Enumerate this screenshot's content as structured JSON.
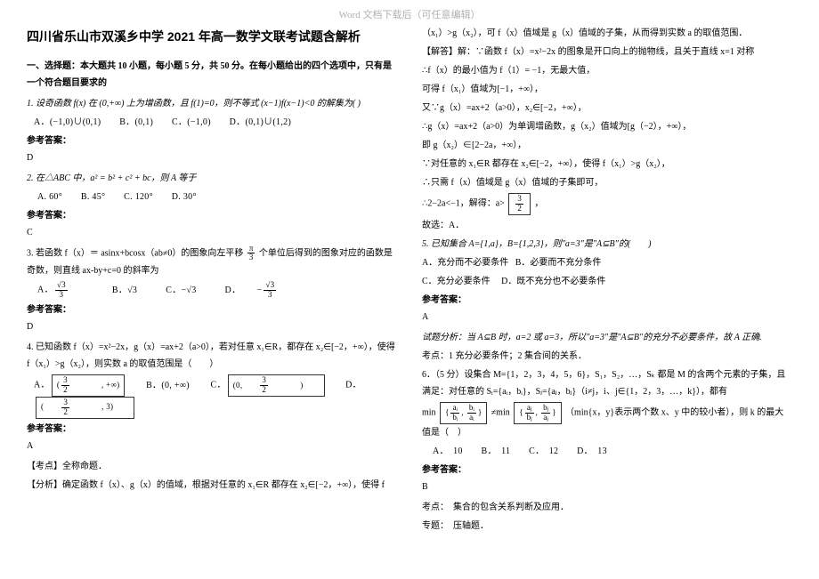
{
  "watermark": "Word 文档下载后（可任意编辑）",
  "title": "四川省乐山市双溪乡中学 2021 年高一数学文联考试题含解析",
  "section1_head": "一、选择题：本大题共 10 小题，每小题 5 分，共 50 分。在每小题给出的四个选项中，只有是一个符合题目要求的",
  "q1_text": "1. 设奇函数 f(x) 在 (0,+∞) 上为增函数，且 f(1)=0，则不等式 (x−1)f(x−1)<0 的解集为(    )",
  "q1_optA": "A．(−1,0)∪(0,1)",
  "q1_optB": "B．(0,1)",
  "q1_optC": "C．(−1,0)",
  "q1_optD": "D．(0,1)∪(1,2)",
  "ans_label": "参考答案：",
  "q1_ans": "D",
  "q2_text": "2. 在△ABC 中，a² = b² + c² + bc，则 A 等于",
  "q2_optA": "A. 60°",
  "q2_optB": "B. 45°",
  "q2_optC": "C. 120°",
  "q2_optD": "D. 30°",
  "q2_ans": "C",
  "q3_text_a": "3. 若函数 f（x）＝ asinx+bcosx（ab≠0）的图象向左平移",
  "q3_text_b": "个单位后得到的图象对应的函数是奇数，则直线 ax-by+c=0 的斜率为",
  "q3_frac_n": "π",
  "q3_frac_d": "3",
  "q3_optA_n": "√3",
  "q3_optA_d": "3",
  "q3_optB": "B．√3",
  "q3_optC": "C．−√3",
  "q3_optD_pre": "D．",
  "q3_optD_n": "√3",
  "q3_optD_d": "3",
  "q3_ans": "D",
  "q4_text": "4. 已知函数 f（x）=x²−2x，g（x）=ax+2（a>0），若对任意 x₁∈R，都存在 x₂∈[−2，+∞），使得 f（x₁）>g（x₂），则实数 a 的取值范围是（　　）",
  "q4_optA_l": "3",
  "q4_optA_r": "(  , +∞)",
  "q4_optA_d": "2",
  "q4_optB": "B．(0, +∞)",
  "q4_optC_l": "(0,",
  "q4_optC_n": "3",
  "q4_optC_d": "2",
  "q4_optC_r": ")",
  "q4_optD_l": "(",
  "q4_optD_n1": "3",
  "q4_optD_d1": "2",
  "q4_optD_mid": ", 3)",
  "q4_ans": "A",
  "kd_label": "【考点】",
  "kd_text": "全称命题．",
  "fx_label": "【分析】",
  "fx_text": "确定函数 f（x）、g（x）的值域，根据对任意的 x₁∈R 都存在 x₂∈[−2，+∞），使得 f",
  "r_line1": "（x₁）>g（x₂），可 f（x）值域是 g（x）值域的子集，从而得到实数 a 的取值范围．",
  "jd_label": "【解答】",
  "jd_text": "解：∵函数 f（x）=x²−2x 的图象是开口向上的抛物线，且关于直线 x=1 对称",
  "r_line3": "∴f（x）的最小值为 f（1）= −1，无最大值，",
  "r_line4": "可得 f（x₁）值域为[−1，+∞），",
  "r_line5": "又∵g（x）=ax+2（a>0），x₂∈[−2，+∞），",
  "r_line6": "∴g（x）=ax+2（a>0）为单调增函数，g（x₂）值域为[g（−2），+∞），",
  "r_line7": "即 g（x₂）∈[2−2a，+∞），",
  "r_line8": "∵对任意的 x₁∈R 都存在 x₂∈[−2，+∞），使得 f（x₁）>g（x₂），",
  "r_line9": "∴只需 f（x）值域是 g（x）值域的子集即可，",
  "r_line10a": "∴2−2a<−1，解得：a>",
  "r_line10_n": "3",
  "r_line10_d": "2",
  "r_line10b": "，",
  "r_line11": "故选：A．",
  "q5_text": "5. 已知集合 A={1,a}，B={1,2,3}，则\"a=3\"是\"A⊆B\"的(　　)",
  "q5_optA": "A．充分而不必要条件",
  "q5_optB": "B．必要而不充分条件",
  "q5_optC": "C．充分必要条件",
  "q5_optD": "D．既不充分也不必要条件",
  "q5_ans": "A",
  "q5_fenxi": "试题分析：当 A⊆B 时，a=2 或 a=3，所以\"a=3\"是\"A⊆B\"的充分不必要条件，故 A 正确.",
  "q5_kaodian": "考点：1 充分必要条件；2 集合间的关系．",
  "q6_text": "6．（5 分）设集合 M={1，2，3，4，5，6}，S₁，S₂，…，Sₖ 都是 M 的含两个元素的子集，且满足：对任意的 Sᵢ={aᵢ，bᵢ}，Sⱼ={aⱼ，bⱼ}（i≠j，i、j∈{1，2，3，…，k}），都有",
  "q6_min_l": "min",
  "q6_box1_n1": "aᵢ",
  "q6_box1_d1": "bᵢ",
  "q6_box1_n2": "bᵢ",
  "q6_box1_d2": "aᵢ",
  "q6_neq": "≠min",
  "q6_box2_n1": "aⱼ",
  "q6_box2_d1": "bⱼ",
  "q6_box2_n2": "bⱼ",
  "q6_box2_d2": "aⱼ",
  "q6_after": "（min{x，y}表示两个数 x、y 中的较小者），则 k 的最大值是（　）",
  "q6_optA": "A．　10",
  "q6_optB": "B．　11",
  "q6_optC": "C．　12",
  "q6_optD": "D．　13",
  "q6_ans": "B",
  "q6_kd": "考点：　集合的包含关系判断及应用．",
  "q6_zt": "专题：　压轴题．"
}
